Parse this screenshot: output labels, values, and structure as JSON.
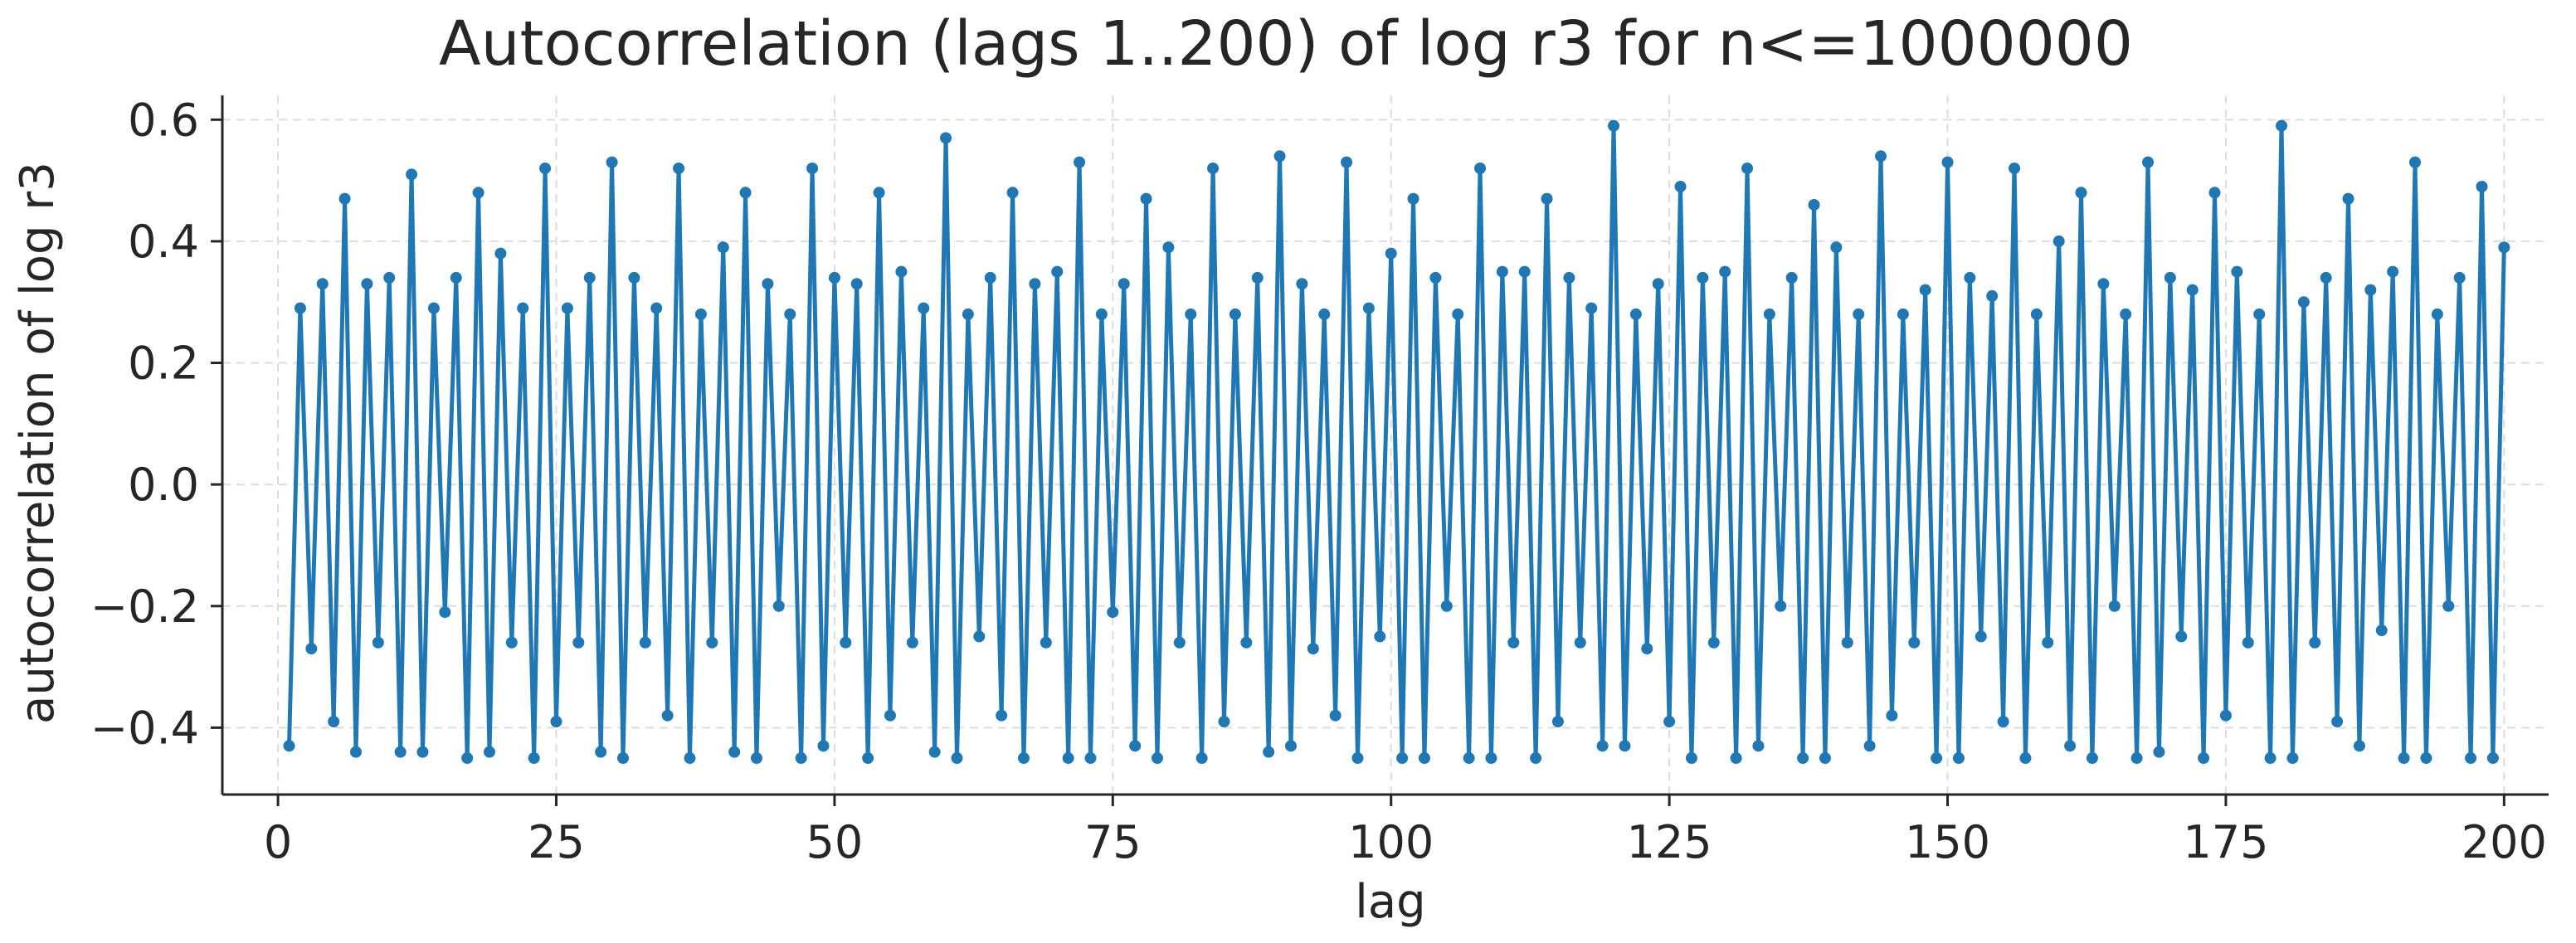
{
  "chart_data": {
    "type": "line",
    "title": "Autocorrelation (lags 1..200) of log r3 for n<=1000000",
    "xlabel": "lag",
    "ylabel": "autocorrelation of log r3",
    "xlim": [
      -5,
      204
    ],
    "ylim": [
      -0.51,
      0.64
    ],
    "xticks": [
      0,
      25,
      50,
      75,
      100,
      125,
      150,
      175,
      200
    ],
    "xtick_labels": [
      "0",
      "25",
      "50",
      "75",
      "100",
      "125",
      "150",
      "175",
      "200"
    ],
    "yticks": [
      -0.4,
      -0.2,
      0.0,
      0.2,
      0.4,
      0.6
    ],
    "ytick_labels": [
      "−0.4",
      "−0.2",
      "0.0",
      "0.2",
      "0.4",
      "0.6"
    ],
    "grid": true,
    "legend": "none",
    "color": "#1f77b4",
    "series": [
      {
        "x": [
          1,
          2,
          3,
          4,
          5,
          6,
          7,
          8,
          9,
          10,
          11,
          12,
          13,
          14,
          15,
          16,
          17,
          18,
          19,
          20,
          21,
          22,
          23,
          24,
          25,
          26,
          27,
          28,
          29,
          30,
          31,
          32,
          33,
          34,
          35,
          36,
          37,
          38,
          39,
          40,
          41,
          42,
          43,
          44,
          45,
          46,
          47,
          48,
          49,
          50,
          51,
          52,
          53,
          54,
          55,
          56,
          57,
          58,
          59,
          60,
          61,
          62,
          63,
          64,
          65,
          66,
          67,
          68,
          69,
          70,
          71,
          72,
          73,
          74,
          75,
          76,
          77,
          78,
          79,
          80,
          81,
          82,
          83,
          84,
          85,
          86,
          87,
          88,
          89,
          90,
          91,
          92,
          93,
          94,
          95,
          96,
          97,
          98,
          99,
          100,
          101,
          102,
          103,
          104,
          105,
          106,
          107,
          108,
          109,
          110,
          111,
          112,
          113,
          114,
          115,
          116,
          117,
          118,
          119,
          120,
          121,
          122,
          123,
          124,
          125,
          126,
          127,
          128,
          129,
          130,
          131,
          132,
          133,
          134,
          135,
          136,
          137,
          138,
          139,
          140,
          141,
          142,
          143,
          144,
          145,
          146,
          147,
          148,
          149,
          150,
          151,
          152,
          153,
          154,
          155,
          156,
          157,
          158,
          159,
          160,
          161,
          162,
          163,
          164,
          165,
          166,
          167,
          168,
          169,
          170,
          171,
          172,
          173,
          174,
          175,
          176,
          177,
          178,
          179,
          180,
          181,
          182,
          183,
          184,
          185,
          186,
          187,
          188,
          189,
          190,
          191,
          192,
          193,
          194,
          195,
          196,
          197,
          198,
          199,
          200
        ],
        "y": [
          -0.43,
          0.29,
          -0.27,
          0.33,
          -0.39,
          0.47,
          -0.44,
          0.33,
          -0.26,
          0.34,
          -0.44,
          0.51,
          -0.44,
          0.29,
          -0.21,
          0.34,
          -0.45,
          0.48,
          -0.44,
          0.38,
          -0.26,
          0.29,
          -0.45,
          0.52,
          -0.39,
          0.29,
          -0.26,
          0.34,
          -0.44,
          0.53,
          -0.45,
          0.34,
          -0.26,
          0.29,
          -0.38,
          0.52,
          -0.45,
          0.28,
          -0.26,
          0.39,
          -0.44,
          0.48,
          -0.45,
          0.33,
          -0.2,
          0.28,
          -0.45,
          0.52,
          -0.43,
          0.34,
          -0.26,
          0.33,
          -0.45,
          0.48,
          -0.38,
          0.35,
          -0.26,
          0.29,
          -0.44,
          0.57,
          -0.45,
          0.28,
          -0.25,
          0.34,
          -0.38,
          0.48,
          -0.45,
          0.33,
          -0.26,
          0.35,
          -0.45,
          0.53,
          -0.45,
          0.28,
          -0.21,
          0.33,
          -0.43,
          0.47,
          -0.45,
          0.39,
          -0.26,
          0.28,
          -0.45,
          0.52,
          -0.39,
          0.28,
          -0.26,
          0.34,
          -0.44,
          0.54,
          -0.43,
          0.33,
          -0.27,
          0.28,
          -0.38,
          0.53,
          -0.45,
          0.29,
          -0.25,
          0.38,
          -0.45,
          0.47,
          -0.45,
          0.34,
          -0.2,
          0.28,
          -0.45,
          0.52,
          -0.45,
          0.35,
          -0.26,
          0.35,
          -0.45,
          0.47,
          -0.39,
          0.34,
          -0.26,
          0.29,
          -0.43,
          0.59,
          -0.43,
          0.28,
          -0.27,
          0.33,
          -0.39,
          0.49,
          -0.45,
          0.34,
          -0.26,
          0.35,
          -0.45,
          0.52,
          -0.43,
          0.28,
          -0.2,
          0.34,
          -0.45,
          0.46,
          -0.45,
          0.39,
          -0.26,
          0.28,
          -0.43,
          0.54,
          -0.38,
          0.28,
          -0.26,
          0.32,
          -0.45,
          0.53,
          -0.45,
          0.34,
          -0.25,
          0.31,
          -0.39,
          0.52,
          -0.45,
          0.28,
          -0.26,
          0.4,
          -0.43,
          0.48,
          -0.45,
          0.33,
          -0.2,
          0.28,
          -0.45,
          0.53,
          -0.44,
          0.34,
          -0.25,
          0.32,
          -0.45,
          0.48,
          -0.38,
          0.35,
          -0.26,
          0.28,
          -0.45,
          0.59,
          -0.45,
          0.3,
          -0.26,
          0.34,
          -0.39,
          0.47,
          -0.43,
          0.32,
          -0.24,
          0.35,
          -0.45,
          0.53,
          -0.45,
          0.28,
          -0.2,
          0.34,
          -0.45,
          0.49,
          -0.45,
          0.39
        ]
      }
    ]
  }
}
